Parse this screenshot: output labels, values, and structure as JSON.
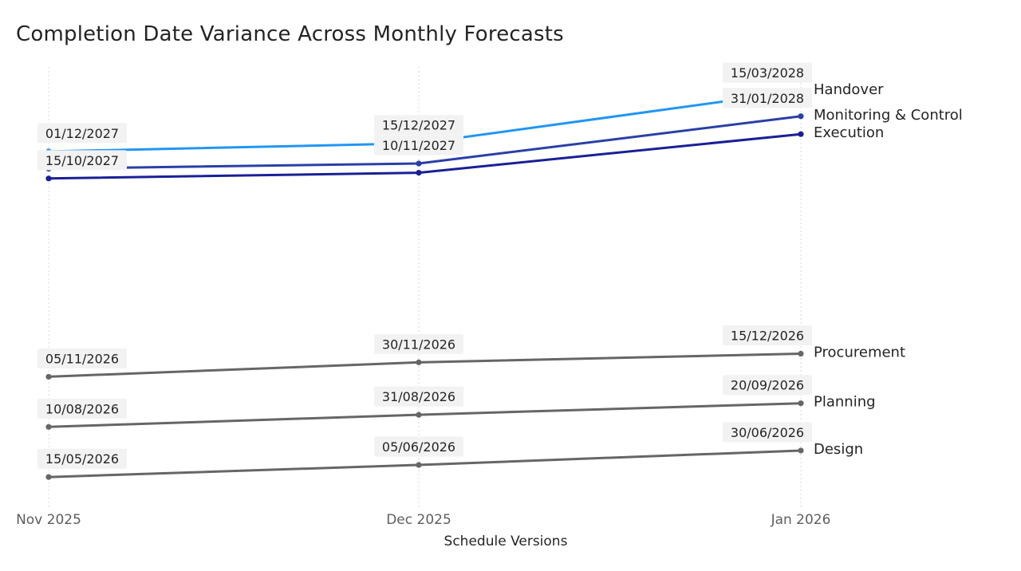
{
  "title": "Completion Date Variance Across Monthly Forecasts",
  "colors": {
    "handover": "#2196f3",
    "monitoring": "#2a3fa8",
    "execution": "#1a1f96",
    "gray": "#666666"
  },
  "chart_data": {
    "type": "line",
    "title": "Completion Date Variance Across Monthly Forecasts",
    "xlabel": "Schedule Versions",
    "ylabel": "",
    "categories": [
      "Nov 2025",
      "Dec 2025",
      "Jan 2026"
    ],
    "ylim": [
      "2026-04-01",
      "2028-05-01"
    ],
    "grid": "vertical-dotted",
    "legend": "end-of-line labels",
    "series": [
      {
        "name": "Handover",
        "color": "#2196f3",
        "values": [
          "2027-12-01",
          "2027-12-15",
          "2028-03-15"
        ],
        "labels": [
          "01/12/2027",
          "15/12/2027",
          "15/03/2028"
        ]
      },
      {
        "name": "Monitoring & Control",
        "color": "#2a3fa8",
        "values": [
          "2027-11-01",
          "2027-11-10",
          "2028-01-31"
        ],
        "labels": [
          "",
          "10/11/2027",
          "31/01/2028"
        ]
      },
      {
        "name": "Execution",
        "color": "#1a1f96",
        "values": [
          "2027-10-15",
          "2027-10-25",
          "2027-12-31"
        ],
        "labels": [
          "15/10/2027",
          "",
          ""
        ]
      },
      {
        "name": "Procurement",
        "color": "#666666",
        "values": [
          "2026-11-05",
          "2026-11-30",
          "2026-12-15"
        ],
        "labels": [
          "05/11/2026",
          "30/11/2026",
          "15/12/2026"
        ]
      },
      {
        "name": "Planning",
        "color": "#666666",
        "values": [
          "2026-08-10",
          "2026-08-31",
          "2026-09-20"
        ],
        "labels": [
          "10/08/2026",
          "31/08/2026",
          "20/09/2026"
        ]
      },
      {
        "name": "Design",
        "color": "#666666",
        "values": [
          "2026-05-15",
          "2026-06-05",
          "2026-06-30"
        ],
        "labels": [
          "15/05/2026",
          "05/06/2026",
          "30/06/2026"
        ]
      }
    ]
  }
}
